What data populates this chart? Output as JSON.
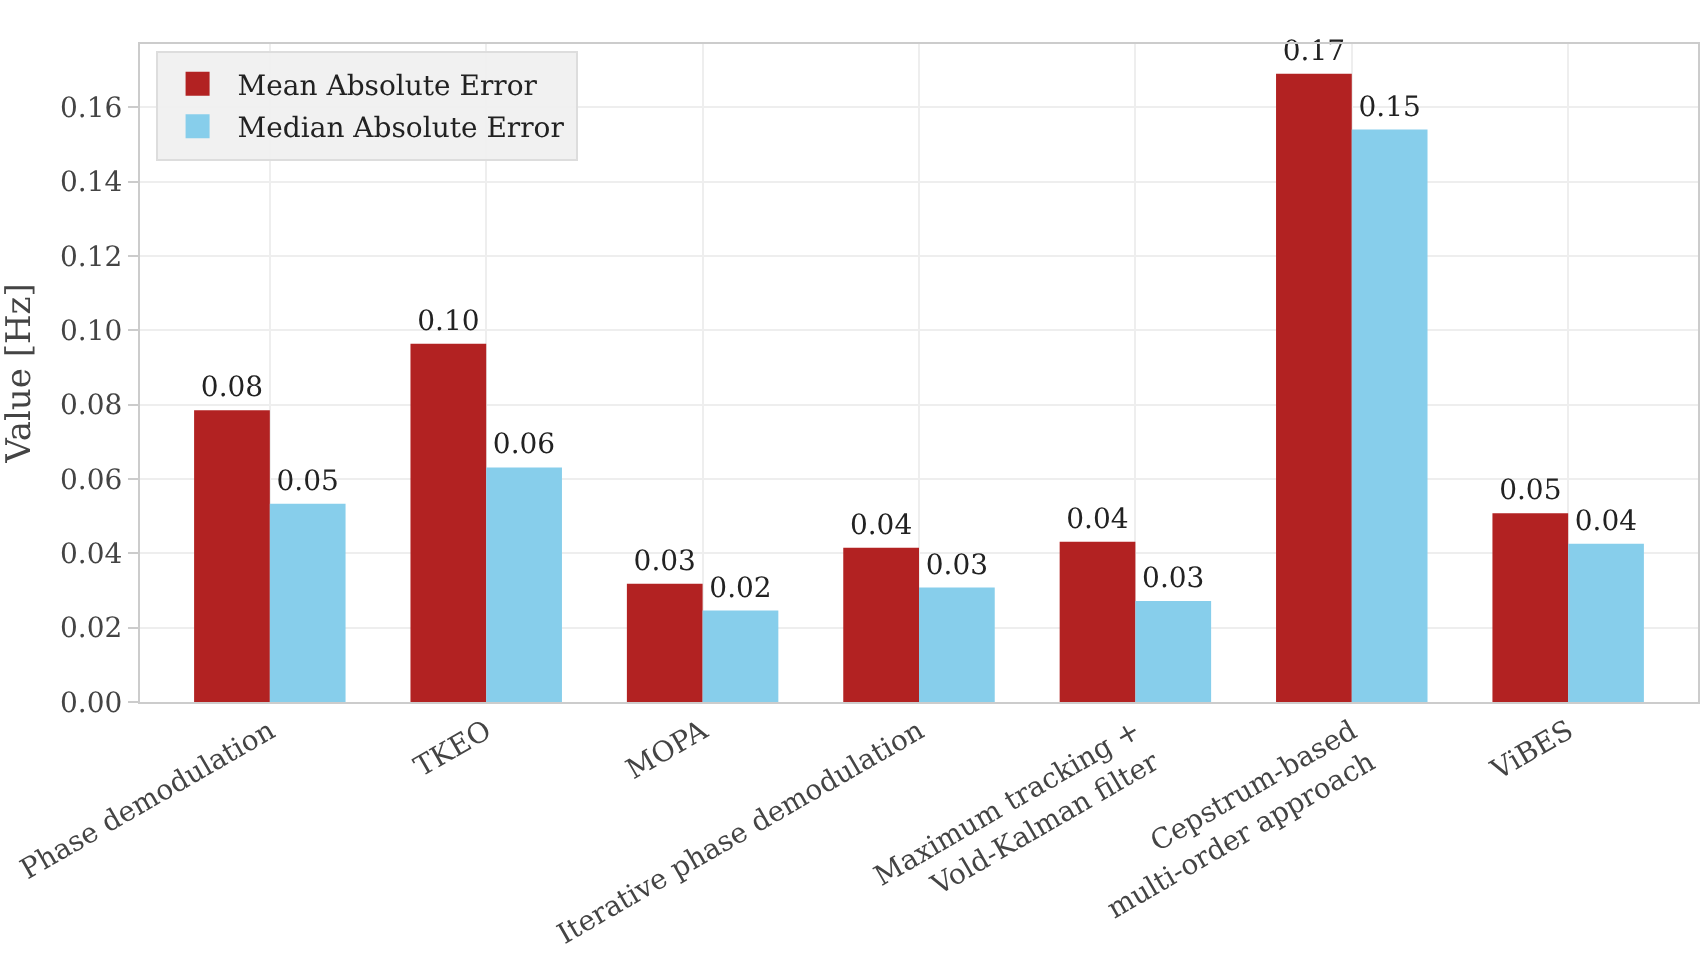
{
  "chart_data": {
    "type": "bar",
    "ylabel": "Value [Hz]",
    "categories": [
      "Phase demodulation",
      "TKEO",
      "MOPA",
      "Iterative phase demodulation",
      "Maximum tracking +\nVold-Kalman filter",
      "Cepstrum-based\nmulti-order approach",
      "ViBES"
    ],
    "series": [
      {
        "name": "Mean Absolute Error",
        "color": "#b22222",
        "values": [
          0.0785,
          0.0964,
          0.0318,
          0.0415,
          0.0431,
          0.169,
          0.0508
        ],
        "value_labels": [
          "0.08",
          "0.10",
          "0.03",
          "0.04",
          "0.04",
          "0.17",
          "0.05"
        ]
      },
      {
        "name": "Median Absolute Error",
        "color": "#87ceeb",
        "values": [
          0.0533,
          0.0631,
          0.0246,
          0.0308,
          0.0272,
          0.154,
          0.0426
        ],
        "value_labels": [
          "0.05",
          "0.06",
          "0.02",
          "0.03",
          "0.03",
          "0.15",
          "0.04"
        ]
      }
    ],
    "ylim": [
      0,
      0.177
    ],
    "yticks": [
      "0.00",
      "0.02",
      "0.04",
      "0.06",
      "0.08",
      "0.10",
      "0.12",
      "0.14",
      "0.16"
    ],
    "grid": true,
    "legend": "top left"
  }
}
